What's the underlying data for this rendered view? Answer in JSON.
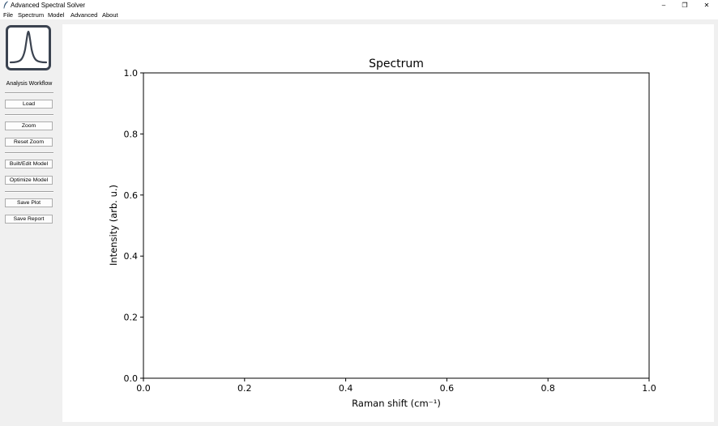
{
  "window": {
    "title": "Advanced Spectral Solver",
    "controls": {
      "minimize": "–",
      "restore": "❐",
      "close": "✕"
    }
  },
  "menu": [
    "File",
    "Spectrum",
    "Model",
    "Advanced",
    "About"
  ],
  "sidebar": {
    "workflow_label": "Analysis Workflow",
    "buttons": {
      "load": "Load",
      "zoom": "Zoom",
      "reset_zoom": "Reset Zoom",
      "build_model": "Built/Edit Model",
      "optimize_model": "Optimize Model",
      "save_plot": "Save Plot",
      "save_report": "Save Report"
    }
  },
  "chart_data": {
    "type": "line",
    "title": "Spectrum",
    "xlabel": "Raman shift (cm⁻¹)",
    "ylabel": "Intensity (arb. u.)",
    "xlim": [
      0.0,
      1.0
    ],
    "ylim": [
      0.0,
      1.0
    ],
    "xticks": [
      "0.0",
      "0.2",
      "0.4",
      "0.6",
      "0.8",
      "1.0"
    ],
    "yticks": [
      "0.0",
      "0.2",
      "0.4",
      "0.6",
      "0.8",
      "1.0"
    ],
    "series": [],
    "grid": false
  }
}
